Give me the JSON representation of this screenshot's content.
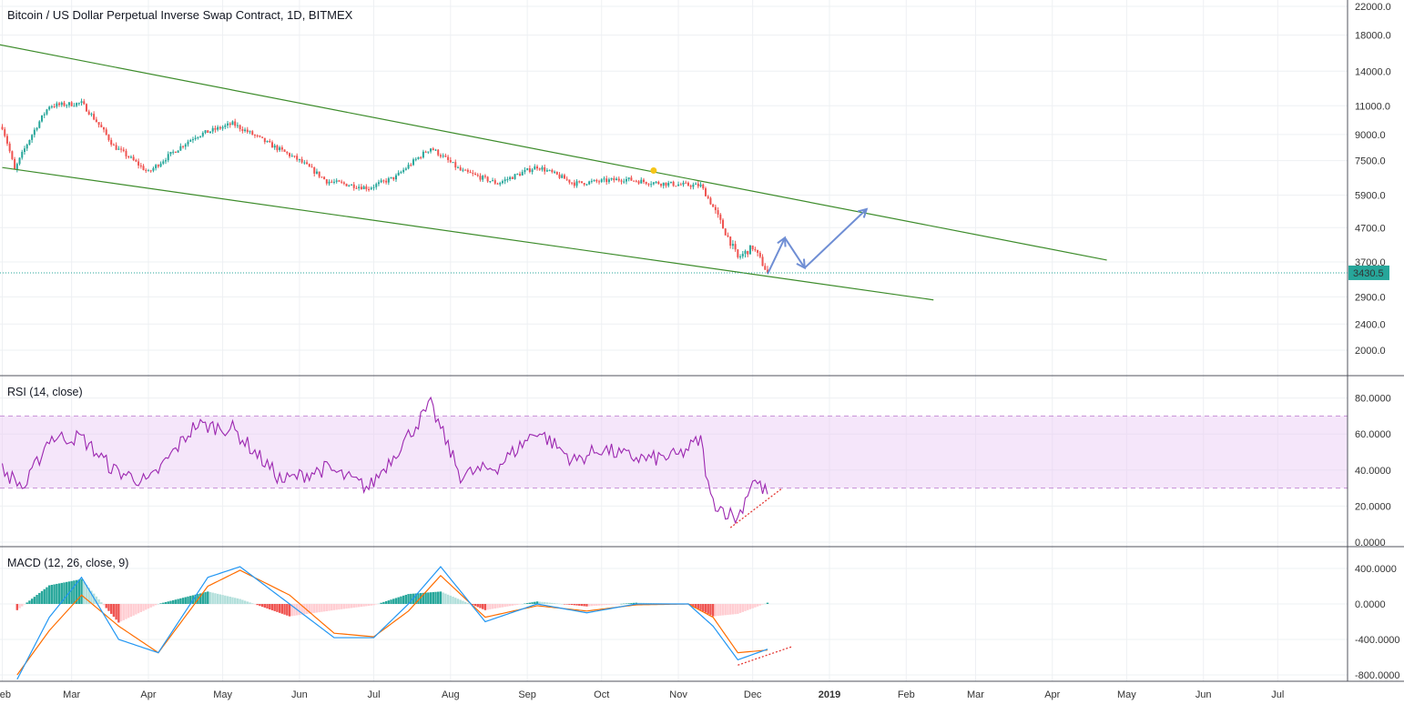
{
  "title": "Bitcoin / US Dollar Perpetual Inverse Swap Contract, 1D, BITMEX",
  "colors": {
    "up": "#26a69a",
    "down": "#ef5350",
    "rsi_line": "#9c27b0",
    "rsi_band": "#e8c8f5",
    "macd": "#2196f3",
    "signal": "#ff6d00",
    "channel": "#3d8c2b",
    "arrow": "#6f8ed4",
    "last_price": "#26a69a",
    "hist_up_strong": "#26a69a",
    "hist_up_weak": "#b2dfdb",
    "hist_down_strong": "#ef5350",
    "hist_down_weak": "#ffcdd2"
  },
  "x_axis": [
    "Feb",
    "Mar",
    "Apr",
    "May",
    "Jun",
    "Jul",
    "Aug",
    "Sep",
    "Oct",
    "Nov",
    "Dec",
    "2019",
    "Feb",
    "Mar",
    "Apr",
    "May",
    "Jun",
    "Jul"
  ],
  "price_pane": {
    "axis_labels": [
      "22000.0",
      "18000.0",
      "14000.0",
      "11000.0",
      "9000.0",
      "7500.0",
      "5900.0",
      "4700.0",
      "3700.0",
      "2900.0",
      "2400.0",
      "2000.0"
    ],
    "last_price": "3430.5"
  },
  "rsi_pane": {
    "label": "RSI (14, close)",
    "axis_labels": [
      "80.0000",
      "60.0000",
      "40.0000",
      "20.0000",
      "0.0000"
    ],
    "upper_band": 70,
    "lower_band": 30
  },
  "macd_pane": {
    "label": "MACD (12, 26, close, 9)",
    "axis_labels": [
      "400.0000",
      "0.0000",
      "-400.0000",
      "-800.0000"
    ]
  },
  "chart_data": [
    {
      "type": "line",
      "title": "Bitcoin / US Dollar Perpetual Inverse Swap Contract, 1D, BITMEX",
      "scale": "log",
      "ylim": [
        1700,
        22000
      ],
      "x": [
        "2018-02-01",
        "2018-02-06",
        "2018-02-20",
        "2018-03-05",
        "2018-03-18",
        "2018-04-01",
        "2018-04-20",
        "2018-05-05",
        "2018-05-20",
        "2018-06-01",
        "2018-06-12",
        "2018-06-29",
        "2018-07-10",
        "2018-07-24",
        "2018-08-05",
        "2018-08-20",
        "2018-09-05",
        "2018-09-20",
        "2018-10-01",
        "2018-10-10",
        "2018-10-20",
        "2018-11-01",
        "2018-11-10",
        "2018-11-14",
        "2018-11-19",
        "2018-11-25",
        "2018-12-01",
        "2018-12-07"
      ],
      "y": [
        9500,
        7000,
        11000,
        11200,
        8300,
        6900,
        8900,
        9700,
        8400,
        7500,
        6500,
        6200,
        6700,
        8200,
        7000,
        6400,
        7200,
        6400,
        6500,
        6600,
        6450,
        6350,
        6300,
        5600,
        4700,
        3800,
        4100,
        3430
      ],
      "annotations": {
        "channel_upper": [
          [
            "2018-01-28",
            17000
          ],
          [
            "2019-04-23",
            3750
          ]
        ],
        "channel_lower": [
          [
            "2018-02-01",
            7150
          ],
          [
            "2019-02-12",
            2840
          ]
        ],
        "projection_path": [
          [
            "2018-12-07",
            3400
          ],
          [
            "2018-12-14",
            4380
          ],
          [
            "2018-12-22",
            3550
          ],
          [
            "2019-01-16",
            5350
          ]
        ]
      }
    },
    {
      "type": "line",
      "name": "RSI (14, close)",
      "ylim": [
        0,
        88
      ],
      "x": [
        "2018-02-01",
        "2018-02-10",
        "2018-02-20",
        "2018-03-05",
        "2018-03-18",
        "2018-04-01",
        "2018-04-20",
        "2018-05-05",
        "2018-05-25",
        "2018-06-12",
        "2018-06-29",
        "2018-07-10",
        "2018-07-24",
        "2018-08-05",
        "2018-08-20",
        "2018-09-05",
        "2018-09-20",
        "2018-10-01",
        "2018-10-10",
        "2018-10-20",
        "2018-11-01",
        "2018-11-10",
        "2018-11-14",
        "2018-11-19",
        "2018-11-25",
        "2018-12-01",
        "2018-12-07"
      ],
      "y": [
        40,
        30,
        58,
        58,
        40,
        33,
        65,
        63,
        34,
        41,
        30,
        50,
        76,
        37,
        42,
        62,
        45,
        52,
        48,
        46,
        48,
        57,
        24,
        18,
        13,
        35,
        27
      ]
    },
    {
      "type": "line",
      "series": [
        {
          "name": "MACD",
          "x": [
            "2018-02-07",
            "2018-02-20",
            "2018-03-05",
            "2018-03-20",
            "2018-04-05",
            "2018-04-25",
            "2018-05-08",
            "2018-05-28",
            "2018-06-15",
            "2018-07-01",
            "2018-07-15",
            "2018-07-28",
            "2018-08-15",
            "2018-09-05",
            "2018-09-25",
            "2018-10-15",
            "2018-11-05",
            "2018-11-15",
            "2018-11-25",
            "2018-12-07"
          ],
          "y": [
            -850,
            -150,
            300,
            -400,
            -550,
            300,
            420,
            0,
            -380,
            -380,
            0,
            420,
            -200,
            0,
            -100,
            0,
            0,
            -250,
            -630,
            -510
          ]
        },
        {
          "name": "Signal",
          "x": [
            "2018-02-07",
            "2018-02-20",
            "2018-03-05",
            "2018-03-20",
            "2018-04-05",
            "2018-04-25",
            "2018-05-08",
            "2018-05-28",
            "2018-06-15",
            "2018-07-01",
            "2018-07-15",
            "2018-07-28",
            "2018-08-15",
            "2018-09-05",
            "2018-09-25",
            "2018-10-15",
            "2018-11-05",
            "2018-11-15",
            "2018-11-25",
            "2018-12-07"
          ],
          "y": [
            -800,
            -300,
            100,
            -250,
            -550,
            200,
            380,
            100,
            -330,
            -370,
            -80,
            320,
            -150,
            -20,
            -80,
            -10,
            0,
            -150,
            -550,
            -520
          ]
        }
      ],
      "ylim": [
        -820,
        460
      ]
    }
  ]
}
